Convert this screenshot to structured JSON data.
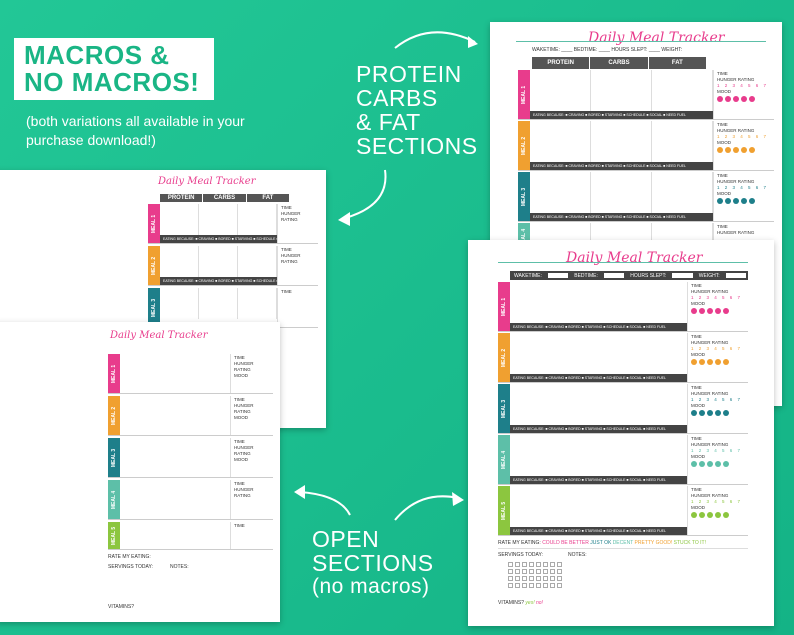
{
  "headline": "MACROS &\nNO MACROS!",
  "subtext": "(both variations all available in your purchase download!)",
  "callout_macros": "PROTEIN\nCARBS\n& FAT\nSECTIONS",
  "callout_open_line1": "OPEN",
  "callout_open_line2": "SECTIONS",
  "callout_open_line3": "(no macros)",
  "sheet_title": "Daily Meal Tracker",
  "header_fields": [
    "WAKETIME:",
    "BEDTIME:",
    "HOURS SLEPT:",
    "WEIGHT:"
  ],
  "macro_cols": [
    "PROTEIN",
    "CARBS",
    "FAT"
  ],
  "meals": [
    "MEAL 1",
    "MEAL 2",
    "MEAL 3",
    "MEAL 4",
    "MEAL 5"
  ],
  "meal_colors": [
    "#e83c8c",
    "#f0a030",
    "#1e7f8a",
    "#5dbfa8",
    "#8cc63f"
  ],
  "side_labels": {
    "time": "TIME",
    "hunger": "HUNGER RATING",
    "nums": "1 2 3 4 5 6 7",
    "scale": "FULL   A LITTLE   STARVING",
    "mood": "MOOD"
  },
  "eating_because": "EATING BECAUSE: ■ CRAVING ■ BORED ■ STARVING ■ SCHEDULE ■ SOCIAL ■ NEED FUEL",
  "rate_label": "RATE MY EATING:",
  "rate_options": [
    "COULD BE BETTER",
    "JUST OK",
    "DECENT",
    "PRETTY GOOD!",
    "STUCK TO IT!"
  ],
  "servings_label": "SERVINGS TODAY:",
  "notes_label": "NOTES:",
  "vitamins_label": "VITAMINS?",
  "vitamins_yes": "yes!",
  "vitamins_no": "no!"
}
